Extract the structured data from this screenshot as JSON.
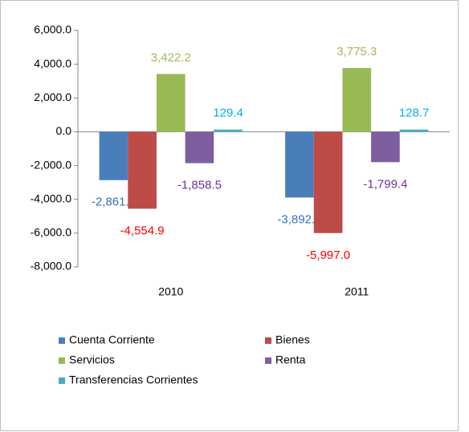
{
  "chart_data": {
    "type": "bar",
    "categories": [
      "2010",
      "2011"
    ],
    "series": [
      {
        "name": "Cuenta Corriente",
        "color": "#4a7ebb",
        "label_color": "#2e75b6",
        "values": [
          -2861.8,
          -3892.4
        ],
        "value_labels": [
          "-2,861.8",
          "-3,892.4"
        ]
      },
      {
        "name": "Bienes",
        "color": "#be4b48",
        "label_color": "#ff0000",
        "values": [
          -4554.9,
          -5997.0
        ],
        "value_labels": [
          "-4,554.9",
          "-5,997.0"
        ]
      },
      {
        "name": "Servicios",
        "color": "#98b954",
        "label_color": "#9bbb59",
        "values": [
          3422.2,
          3775.3
        ],
        "value_labels": [
          "3,422.2",
          "3,775.3"
        ]
      },
      {
        "name": "Renta",
        "color": "#7d5fa0",
        "label_color": "#7030a0",
        "values": [
          -1858.5,
          -1799.4
        ],
        "value_labels": [
          "-1,858.5",
          "-1,799.4"
        ]
      },
      {
        "name": "Transferencias Corrientes",
        "color": "#46aac5",
        "label_color": "#00b0f0",
        "values": [
          129.4,
          128.7
        ],
        "value_labels": [
          "129.4",
          "128.7"
        ]
      }
    ],
    "ylim": [
      -8000,
      6000
    ],
    "yticks": [
      {
        "value": -8000,
        "label": "-8,000.0"
      },
      {
        "value": -6000,
        "label": "-6,000.0"
      },
      {
        "value": -4000,
        "label": "-4,000.0"
      },
      {
        "value": -2000,
        "label": "-2,000.0"
      },
      {
        "value": 0,
        "label": "0.0"
      },
      {
        "value": 2000,
        "label": "2,000.0"
      },
      {
        "value": 4000,
        "label": "4,000.0"
      },
      {
        "value": 6000,
        "label": "6,000.0"
      }
    ],
    "grid": false
  }
}
